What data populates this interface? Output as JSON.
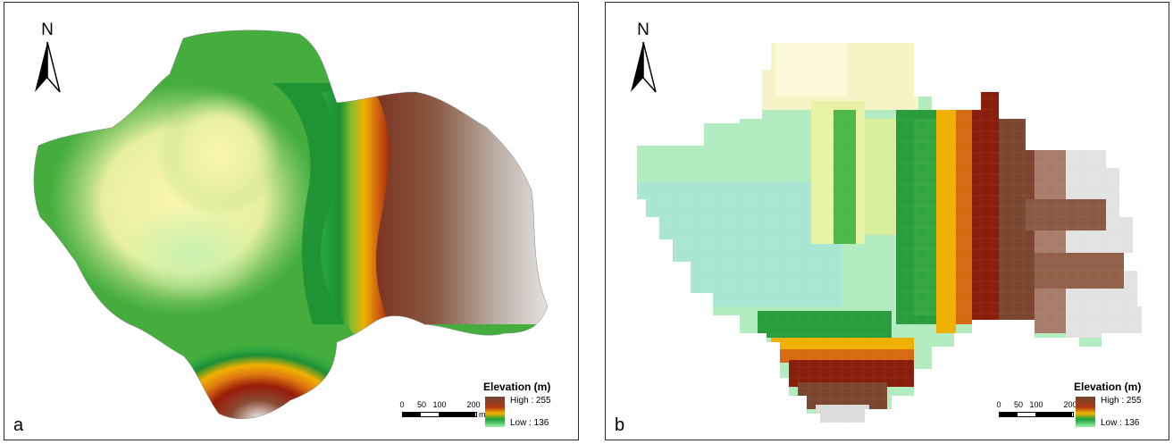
{
  "panels": [
    {
      "id": "a",
      "letter": "a",
      "north": "N",
      "north_arrow_icon": "north-arrow-icon",
      "legend": {
        "title": "Elevation (m)",
        "high": "High : 255",
        "low": "Low : 136"
      },
      "scale": {
        "ticks": [
          "0",
          "50",
          "100",
          "200"
        ],
        "unit": "m"
      }
    },
    {
      "id": "b",
      "letter": "b",
      "north": "N",
      "north_arrow_icon": "north-arrow-icon",
      "legend": {
        "title": "Elevation (m)",
        "high": "High : 255",
        "low": "Low : 136"
      },
      "scale": {
        "ticks": [
          "0",
          "50",
          "100",
          "200"
        ],
        "unit": "m"
      }
    }
  ],
  "colors": {
    "low": "#9ff2a6",
    "mid_low": "#18a23e",
    "mid": "#f2b400",
    "mid_high": "#b23a12",
    "high": "#6e4530",
    "peak": "#e8e8e8"
  }
}
